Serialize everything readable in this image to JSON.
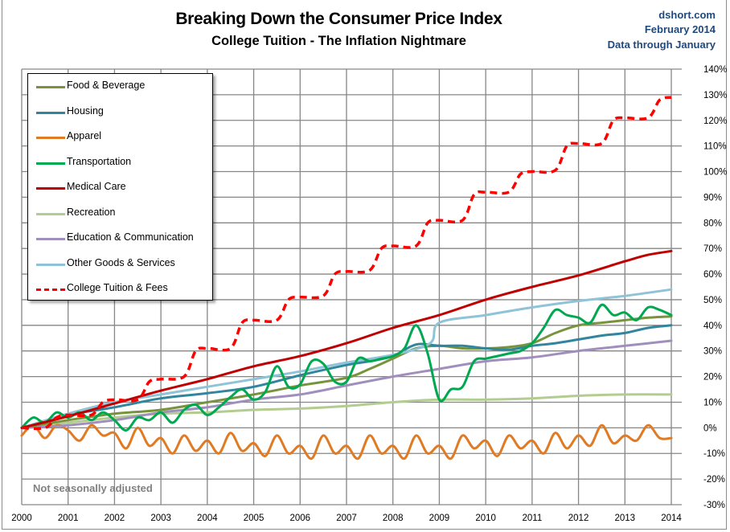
{
  "header": {
    "title": "Breaking Down the Consumer Price Index",
    "subtitle": "College Tuition  - The  Inflation  Nightmare",
    "source_lines": [
      "dshort.com",
      "February 2014",
      "Data through January"
    ]
  },
  "note": "Not seasonally adjusted",
  "chart_data": {
    "type": "line",
    "title": "Breaking Down the Consumer Price Index",
    "subtitle": "College Tuition - The Inflation Nightmare",
    "xlabel": "",
    "ylabel": "",
    "xlim": [
      2000,
      2014
    ],
    "ylim": [
      -30,
      140
    ],
    "y_axis_side": "right",
    "grid": true,
    "legend_position": "top-left",
    "x_ticks": [
      "2000",
      "2001",
      "2002",
      "2003",
      "2004",
      "2005",
      "2006",
      "2007",
      "2008",
      "2009",
      "2010",
      "2011",
      "2012",
      "2013",
      "2014"
    ],
    "y_ticks": [
      "140%",
      "130%",
      "120%",
      "110%",
      "100%",
      "90%",
      "80%",
      "70%",
      "60%",
      "50%",
      "40%",
      "30%",
      "20%",
      "10%",
      "0%",
      "-10%",
      "-20%",
      "-30%"
    ],
    "series": [
      {
        "name": "Food & Beverage",
        "color": "#77933c",
        "dash": false,
        "x": [
          2000,
          2001,
          2002,
          2003,
          2004,
          2005,
          2006,
          2007,
          2007.5,
          2008,
          2008.5,
          2009,
          2009.5,
          2010,
          2010.5,
          2011,
          2011.5,
          2012,
          2012.5,
          2013,
          2013.5,
          2014
        ],
        "y": [
          0,
          3,
          5.5,
          7,
          10,
          13,
          16.5,
          19.5,
          23,
          27,
          31,
          32,
          31,
          31,
          31.5,
          33,
          37,
          40,
          41,
          42,
          43,
          43.5
        ]
      },
      {
        "name": "Housing",
        "color": "#31859c",
        "dash": false,
        "x": [
          2000,
          2001,
          2002,
          2003,
          2004,
          2005,
          2006,
          2007,
          2007.5,
          2008,
          2008.5,
          2009,
          2009.5,
          2010,
          2010.5,
          2011,
          2011.5,
          2012,
          2012.5,
          2013,
          2013.5,
          2014
        ],
        "y": [
          0,
          5,
          8,
          11.5,
          13.5,
          16,
          20.5,
          24.5,
          26,
          28,
          32.5,
          32,
          32,
          31,
          30.5,
          32,
          33,
          34.5,
          36,
          37,
          39,
          40
        ]
      },
      {
        "name": "Apparel",
        "color": "#e07b24",
        "dash": false,
        "oscillating": true,
        "x": [
          2000,
          2000.25,
          2000.5,
          2000.75,
          2001,
          2001.25,
          2001.5,
          2001.75,
          2002,
          2002.25,
          2002.5,
          2002.75,
          2003,
          2003.25,
          2003.5,
          2003.75,
          2004,
          2004.25,
          2004.5,
          2004.75,
          2005,
          2005.25,
          2005.5,
          2005.75,
          2006,
          2006.25,
          2006.5,
          2006.75,
          2007,
          2007.25,
          2007.5,
          2007.75,
          2008,
          2008.25,
          2008.5,
          2008.75,
          2009,
          2009.25,
          2009.5,
          2009.75,
          2010,
          2010.25,
          2010.5,
          2010.75,
          2011,
          2011.25,
          2011.5,
          2011.75,
          2012,
          2012.25,
          2012.5,
          2012.75,
          2013,
          2013.25,
          2013.5,
          2013.75,
          2014
        ],
        "y": [
          -3,
          1,
          -4,
          1,
          -1,
          -5,
          1,
          -3,
          -2,
          -8,
          0,
          -7,
          -4,
          -10,
          -3,
          -9,
          -5,
          -10,
          -2,
          -9,
          -6,
          -11,
          -3,
          -10,
          -7,
          -12,
          -3,
          -10,
          -7,
          -12,
          -3,
          -10,
          -7,
          -12,
          -3,
          -10,
          -7,
          -12,
          -3,
          -8,
          -5,
          -11,
          -3,
          -8,
          -5,
          -10,
          -2,
          -8,
          -3,
          -7,
          1,
          -6,
          -3,
          -5,
          1,
          -4,
          -4
        ]
      },
      {
        "name": "Transportation",
        "color": "#00a84f",
        "dash": false,
        "x": [
          2000,
          2000.25,
          2000.5,
          2000.75,
          2001,
          2001.25,
          2001.5,
          2001.75,
          2002,
          2002.25,
          2002.5,
          2002.75,
          2003,
          2003.25,
          2003.5,
          2003.75,
          2004,
          2004.25,
          2004.5,
          2004.75,
          2005,
          2005.25,
          2005.5,
          2005.75,
          2006,
          2006.25,
          2006.5,
          2006.75,
          2007,
          2007.25,
          2007.5,
          2007.75,
          2008,
          2008.25,
          2008.5,
          2008.75,
          2009,
          2009.25,
          2009.5,
          2009.75,
          2010,
          2010.25,
          2010.5,
          2010.75,
          2011,
          2011.25,
          2011.5,
          2011.75,
          2012,
          2012.25,
          2012.5,
          2012.75,
          2013,
          2013.25,
          2013.5,
          2013.75,
          2014
        ],
        "y": [
          0,
          4,
          2,
          6,
          4,
          6,
          3,
          6,
          3,
          -1,
          4,
          3,
          6,
          2,
          7,
          9,
          5,
          8,
          12,
          15,
          11,
          14,
          24,
          16,
          17,
          26,
          25,
          18,
          18,
          27,
          26,
          27,
          28,
          31,
          40,
          29,
          11,
          15,
          16,
          26,
          27,
          28,
          29,
          30,
          33,
          39,
          46,
          44,
          43,
          41,
          48,
          44,
          45,
          42,
          47,
          46,
          44
        ]
      },
      {
        "name": "Medical Care",
        "color": "#c00000",
        "dash": false,
        "x": [
          2000,
          2001,
          2002,
          2003,
          2004,
          2005,
          2006,
          2007,
          2008,
          2009,
          2010,
          2011,
          2012,
          2013,
          2013.5,
          2014
        ],
        "y": [
          0,
          4.5,
          9.5,
          14.5,
          19,
          24,
          28,
          33,
          39,
          44,
          50,
          55,
          59.5,
          65,
          67.5,
          69
        ]
      },
      {
        "name": "Recreation",
        "color": "#b3cc8f",
        "dash": false,
        "x": [
          2000,
          2001,
          2002,
          2003,
          2004,
          2005,
          2006,
          2007,
          2008,
          2009,
          2010,
          2011,
          2012,
          2013,
          2014
        ],
        "y": [
          0,
          2,
          4,
          5.5,
          6,
          7,
          7.5,
          8.5,
          10,
          11,
          11,
          11.5,
          12.5,
          13,
          13
        ]
      },
      {
        "name": "Education & Communication",
        "color": "#a08fbc",
        "dash": false,
        "x": [
          2000,
          2001,
          2002,
          2003,
          2004,
          2005,
          2006,
          2007,
          2008,
          2009,
          2010,
          2011,
          2012,
          2013,
          2014
        ],
        "y": [
          0,
          1,
          3,
          6,
          8,
          11,
          13,
          16.5,
          20,
          23,
          26,
          27.5,
          30,
          32,
          34
        ]
      },
      {
        "name": "Other Goods & Services",
        "color": "#8fc3d8",
        "dash": false,
        "x": [
          2000,
          2001,
          2002,
          2003,
          2004,
          2005,
          2006,
          2007,
          2008,
          2008.8,
          2009,
          2010,
          2011,
          2012,
          2013,
          2014
        ],
        "y": [
          0,
          5.5,
          10,
          13,
          16,
          19,
          22,
          25.5,
          28.5,
          33,
          41,
          44,
          47,
          49.5,
          51.5,
          54
        ]
      },
      {
        "name": "College Tuition & Fees",
        "color": "#ff0000",
        "dash": true,
        "x": [
          2000,
          2000.5,
          2000.75,
          2001,
          2001.5,
          2001.75,
          2002,
          2002.5,
          2002.75,
          2003,
          2003.5,
          2003.75,
          2004,
          2004.5,
          2004.75,
          2005,
          2005.5,
          2005.75,
          2006,
          2006.5,
          2006.75,
          2007,
          2007.5,
          2007.75,
          2008,
          2008.5,
          2008.75,
          2009,
          2009.5,
          2009.75,
          2010,
          2010.5,
          2010.75,
          2011,
          2011.5,
          2011.75,
          2012,
          2012.5,
          2012.75,
          2013,
          2013.5,
          2013.75,
          2014
        ],
        "y": [
          0,
          0,
          4,
          5,
          5,
          10,
          11,
          11,
          18,
          19,
          20,
          30,
          31,
          31,
          41,
          42,
          42,
          50,
          51,
          51.5,
          60,
          61,
          61.5,
          70,
          71,
          71,
          80,
          81,
          81,
          91,
          92,
          92,
          99,
          100,
          100.5,
          110,
          111,
          111,
          120,
          121,
          121,
          128,
          129
        ]
      }
    ]
  }
}
